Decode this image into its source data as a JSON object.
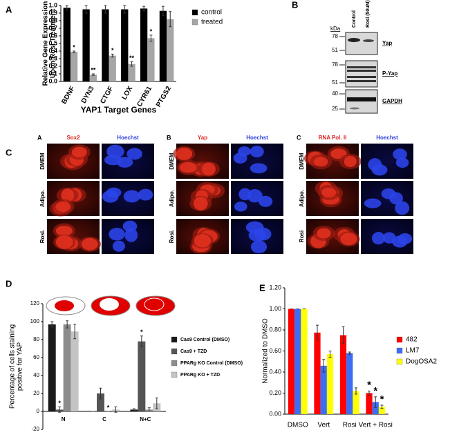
{
  "chart_data": [
    {
      "type": "bar",
      "panel": "A",
      "ylabel": [
        "Relative Gene Expression",
        "Upon Rosi Treatment"
      ],
      "xlabel": "YAP1 Target Genes",
      "categories": [
        "BDNF",
        "DYN3",
        "CTGF",
        "LOX",
        "CYR61",
        "PTGS2"
      ],
      "series": [
        {
          "name": "control",
          "color": "#000000",
          "values": [
            0.97,
            0.95,
            0.95,
            0.95,
            0.96,
            0.93
          ],
          "errors": [
            0.03,
            0.05,
            0.05,
            0.05,
            0.03,
            0.06
          ],
          "annotations": [
            null,
            null,
            null,
            null,
            null,
            null
          ]
        },
        {
          "name": "treated",
          "color": "#a6a6a6",
          "values": [
            0.39,
            0.09,
            0.34,
            0.23,
            0.57,
            0.82
          ],
          "errors": [
            0.01,
            0.01,
            0.02,
            0.03,
            0.04,
            0.1
          ],
          "annotations": [
            "*",
            "**",
            "*",
            "**",
            "*",
            null
          ]
        }
      ],
      "ylim": [
        0,
        1
      ],
      "yticks": [
        {
          "value": 0,
          "label": "0.0"
        },
        {
          "value": 0.1,
          "label": "0.1"
        },
        {
          "value": 0.2,
          "label": "0.2"
        },
        {
          "value": 0.3,
          "label": "0.3"
        },
        {
          "value": 0.4,
          "label": "0.4"
        },
        {
          "value": 0.5,
          "label": "0.5"
        },
        {
          "value": 0.6,
          "label": "0.6"
        },
        {
          "value": 0.7,
          "label": "0.7"
        },
        {
          "value": 0.8,
          "label": "0.8"
        },
        {
          "value": 0.9,
          "label": "0.9"
        },
        {
          "value": 1,
          "label": "1.0"
        }
      ],
      "grid": false,
      "legend": "right"
    },
    {
      "type": "bar",
      "panel": "D",
      "ylabel": [
        "Percentage of cells staining",
        "positive for YAP"
      ],
      "categories": [
        "N",
        "C",
        "N+C"
      ],
      "series": [
        {
          "name": "Cas9 Control (DMSO)",
          "color": "#1a1a1a",
          "values": [
            97,
            0,
            2
          ],
          "errors": [
            3,
            0,
            1
          ],
          "annotations": [
            null,
            null,
            null
          ]
        },
        {
          "name": "Cas9 + TZD",
          "color": "#555555",
          "values": [
            2,
            20,
            78
          ],
          "errors": [
            3,
            6,
            6
          ],
          "annotations": [
            "*",
            null,
            "*"
          ]
        },
        {
          "name": "PPARg KO Control (DMSO)",
          "color": "#8c8c8c",
          "values": [
            97,
            0,
            2
          ],
          "errors": [
            4,
            0,
            2
          ],
          "annotations": [
            null,
            "*",
            null
          ]
        },
        {
          "name": "PPARg KO + TZD",
          "color": "#c4c4c4",
          "values": [
            89,
            2,
            9
          ],
          "errors": [
            8,
            3,
            6
          ],
          "annotations": [
            null,
            null,
            null
          ]
        }
      ],
      "ylim": [
        -20,
        120
      ],
      "yticks": [
        -20,
        0,
        20,
        40,
        60,
        80,
        100,
        120
      ],
      "grid": false,
      "legend": "right"
    },
    {
      "type": "bar",
      "panel": "E",
      "ylabel": [
        "Normalized to DMSO"
      ],
      "categories": [
        "DMSO",
        "Vert",
        "Rosi",
        "Vert + Rosi"
      ],
      "series": [
        {
          "name": "482",
          "color": "#ff0000",
          "values": [
            1,
            0.775,
            0.75,
            0.2
          ],
          "errors": [
            0,
            0.07,
            0.08,
            0.02
          ],
          "annotations": [
            null,
            null,
            null,
            "*"
          ]
        },
        {
          "name": "LM7",
          "color": "#3b6ef5",
          "values": [
            1,
            0.46,
            0.58,
            0.115
          ],
          "errors": [
            0,
            0.06,
            0.01,
            0.05
          ],
          "annotations": [
            null,
            null,
            null,
            "*"
          ]
        },
        {
          "name": "DogOSA2",
          "color": "#ffff00",
          "values": [
            1,
            0.57,
            0.22,
            0.07
          ],
          "errors": [
            0,
            0.03,
            0.03,
            0.015
          ],
          "annotations": [
            null,
            null,
            null,
            "*"
          ]
        }
      ],
      "ylim": [
        0,
        1.2
      ],
      "yticks": [
        {
          "value": 0,
          "label": "0.00"
        },
        {
          "value": 0.2,
          "label": "0.20"
        },
        {
          "value": 0.4,
          "label": "0.40"
        },
        {
          "value": 0.6,
          "label": "0.60"
        },
        {
          "value": 0.8,
          "label": "0.80"
        },
        {
          "value": 1,
          "label": "1.00"
        },
        {
          "value": 1.2,
          "label": "1.20"
        }
      ],
      "grid": false,
      "legend": "right"
    }
  ],
  "blot": {
    "panel": "B",
    "kda": "kDa",
    "lanes": [
      "Control",
      "Rosi (50uM)"
    ],
    "rows": [
      {
        "name": "Yap",
        "markers": [
          78,
          51
        ]
      },
      {
        "name": "P-Yap",
        "markers": [
          78,
          51
        ]
      },
      {
        "name": "GAPDH",
        "markers": [
          40,
          25
        ]
      }
    ]
  },
  "microscopy": {
    "panel": "C",
    "groups": [
      {
        "letter": "A",
        "stain": "Sox2",
        "counterstain": "Hoechst",
        "rows": [
          "DMEM",
          "Adipo.",
          "Rosi."
        ]
      },
      {
        "letter": "B",
        "stain": "Yap",
        "counterstain": "Hoechst",
        "rows": [
          "DMEM",
          "Adipo.",
          "Rosi."
        ]
      },
      {
        "letter": "C",
        "stain": "RNA Pol. II",
        "counterstain": "Hoechst",
        "rows": [
          "DMEM",
          "Adipo.",
          "Rosi"
        ]
      }
    ]
  }
}
